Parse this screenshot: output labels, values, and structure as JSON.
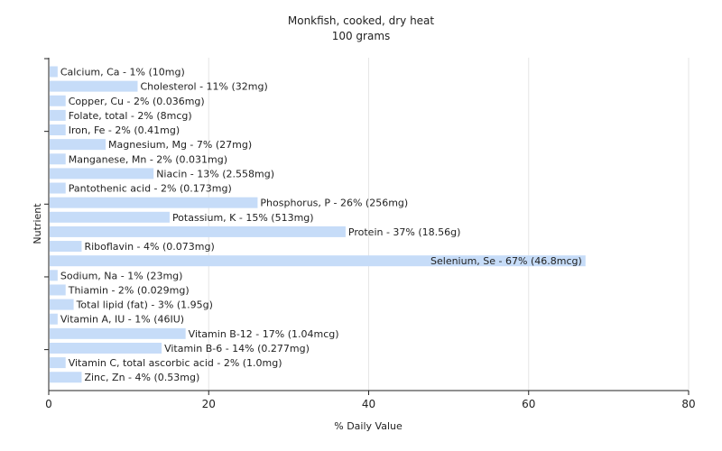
{
  "chart_data": {
    "type": "bar",
    "orientation": "horizontal",
    "title": "Monkfish, cooked, dry heat",
    "subtitle": "100 grams",
    "xlabel": "% Daily Value",
    "ylabel": "Nutrient",
    "xlim": [
      0,
      80
    ],
    "xticks": [
      0,
      20,
      40,
      60,
      80
    ],
    "grid": true,
    "bar_color": "#c6dcf8",
    "categories": [
      "Calcium, Ca",
      "Cholesterol",
      "Copper, Cu",
      "Folate, total",
      "Iron, Fe",
      "Magnesium, Mg",
      "Manganese, Mn",
      "Niacin",
      "Pantothenic acid",
      "Phosphorus, P",
      "Potassium, K",
      "Protein",
      "Riboflavin",
      "Selenium, Se",
      "Sodium, Na",
      "Thiamin",
      "Total lipid (fat)",
      "Vitamin A, IU",
      "Vitamin B-12",
      "Vitamin B-6",
      "Vitamin C, total ascorbic acid",
      "Zinc, Zn"
    ],
    "values": [
      1,
      11,
      2,
      2,
      2,
      7,
      2,
      13,
      2,
      26,
      15,
      37,
      4,
      67,
      1,
      2,
      3,
      1,
      17,
      14,
      2,
      4
    ],
    "labels": [
      "Calcium, Ca - 1% (10mg)",
      "Cholesterol - 11% (32mg)",
      "Copper, Cu - 2% (0.036mg)",
      "Folate, total - 2% (8mcg)",
      "Iron, Fe - 2% (0.41mg)",
      "Magnesium, Mg - 7% (27mg)",
      "Manganese, Mn - 2% (0.031mg)",
      "Niacin - 13% (2.558mg)",
      "Pantothenic acid - 2% (0.173mg)",
      "Phosphorus, P - 26% (256mg)",
      "Potassium, K - 15% (513mg)",
      "Protein - 37% (18.56g)",
      "Riboflavin - 4% (0.073mg)",
      "Selenium, Se - 67% (46.8mcg)",
      "Sodium, Na - 1% (23mg)",
      "Thiamin - 2% (0.029mg)",
      "Total lipid (fat) - 3% (1.95g)",
      "Vitamin A, IU - 1% (46IU)",
      "Vitamin B-12 - 17% (1.04mcg)",
      "Vitamin B-6 - 14% (0.277mg)",
      "Vitamin C, total ascorbic acid - 2% (1.0mg)",
      "Zinc, Zn - 4% (0.53mg)"
    ]
  }
}
